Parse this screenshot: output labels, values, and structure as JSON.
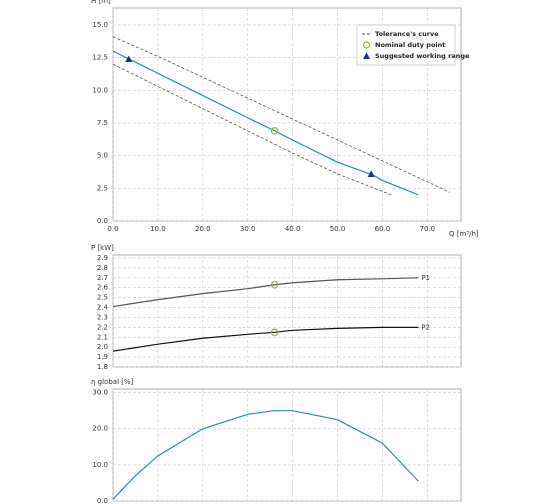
{
  "chart_data": [
    {
      "type": "line",
      "y_label": "H [m]",
      "x_label": "Q [m³/h]",
      "xlim": [
        0,
        77.5
      ],
      "ylim": [
        0,
        16.3
      ],
      "xticks": [
        {
          "value": 0,
          "label": "0.0"
        },
        {
          "value": 10,
          "label": "10.0"
        },
        {
          "value": 20,
          "label": "20.0"
        },
        {
          "value": 30,
          "label": "30.0"
        },
        {
          "value": 40,
          "label": "40.0"
        },
        {
          "value": 50,
          "label": "50.0"
        },
        {
          "value": 60,
          "label": "60.0"
        },
        {
          "value": 70,
          "label": "70.0"
        }
      ],
      "yticks": [
        {
          "value": 0,
          "label": "0.0"
        },
        2.5,
        {
          "value": 5,
          "label": "5.0"
        },
        7.5,
        {
          "value": 10,
          "label": "10.0"
        },
        12.5,
        {
          "value": 15,
          "label": "15.0"
        }
      ],
      "grid": true,
      "legend": "upper right",
      "series": [
        {
          "color": "#2a8ab8",
          "x": [
            0,
            10,
            20,
            30,
            36,
            40,
            50,
            58,
            60,
            68
          ],
          "values": [
            13.0,
            11.3,
            9.6,
            7.9,
            6.9,
            6.2,
            4.5,
            3.5,
            3.1,
            2.0
          ]
        },
        {
          "name": "Tolerance's curve",
          "color": "#555555",
          "dashed": true,
          "x": [
            0,
            10,
            20,
            30,
            40,
            50,
            60,
            75
          ],
          "values": [
            14.1,
            12.6,
            11.0,
            9.4,
            7.8,
            6.2,
            4.6,
            2.2
          ]
        },
        {
          "color": "#555555",
          "dashed": true,
          "x": [
            0,
            10,
            20,
            30,
            40,
            50,
            62
          ],
          "values": [
            12.0,
            10.3,
            8.6,
            6.9,
            5.2,
            3.6,
            2.0
          ]
        }
      ],
      "duty_points": {
        "name": "Nominal duty point",
        "color": "#8cb83a",
        "x": [
          36
        ],
        "values": [
          6.9
        ]
      },
      "working_range": {
        "name": "Suggested working range",
        "color": "#1a2aa0",
        "x": [
          3.5,
          57.5
        ],
        "values": [
          12.4,
          3.6
        ]
      }
    },
    {
      "type": "line",
      "y_label": "P [kW]",
      "xlim": [
        0,
        77.5
      ],
      "ylim": [
        1.8,
        2.93
      ],
      "xticks": [
        0,
        10,
        20,
        30,
        40,
        50,
        60,
        70
      ],
      "yticks": [
        1.8,
        1.9,
        {
          "value": 2,
          "label": "2.0"
        },
        2.1,
        2.2,
        2.3,
        2.4,
        2.5,
        2.6,
        2.7,
        2.8,
        2.9
      ],
      "grid": true,
      "series": [
        {
          "name": "P1",
          "color": "#555555",
          "x": [
            0,
            10,
            20,
            30,
            36,
            40,
            50,
            60,
            68
          ],
          "values": [
            2.41,
            2.48,
            2.54,
            2.59,
            2.63,
            2.65,
            2.68,
            2.69,
            2.7
          ]
        },
        {
          "name": "P2",
          "color": "#111111",
          "x": [
            0,
            10,
            20,
            30,
            36,
            40,
            50,
            60,
            68
          ],
          "values": [
            1.96,
            2.03,
            2.09,
            2.13,
            2.15,
            2.17,
            2.19,
            2.2,
            2.2
          ]
        }
      ],
      "duty_points": {
        "color": "#8cb83a",
        "x": [
          36,
          36
        ],
        "values": [
          2.63,
          2.15
        ]
      }
    },
    {
      "type": "line",
      "y_label": "η global [%]",
      "xlim": [
        0,
        77.5
      ],
      "ylim": [
        0,
        31
      ],
      "xticks": [
        0,
        10,
        20,
        30,
        40,
        50,
        60,
        70
      ],
      "yticks": [
        {
          "value": 0,
          "label": "0.0"
        },
        {
          "value": 10,
          "label": "10.0"
        },
        {
          "value": 20,
          "label": "20.0"
        },
        {
          "value": 30,
          "label": "30.0"
        }
      ],
      "grid": true,
      "series": [
        {
          "color": "#2a8ab8",
          "x": [
            0,
            5,
            10,
            20,
            30,
            36,
            40,
            50,
            60,
            68
          ],
          "values": [
            0.5,
            7,
            12.5,
            20,
            24,
            25,
            25,
            22.5,
            16,
            5.5
          ]
        }
      ]
    }
  ]
}
